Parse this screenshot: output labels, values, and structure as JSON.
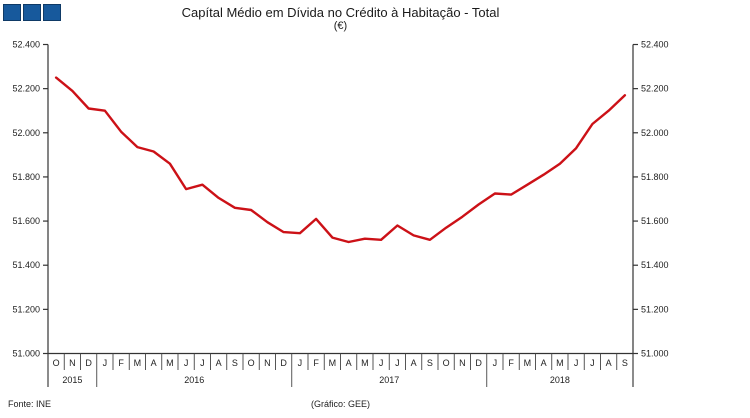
{
  "header": {
    "title": "Capítal Médio em Dívida no Crédito à Habitação - Total",
    "subtitle": "(€)"
  },
  "footer": {
    "source": "Fonte: INE",
    "credit": "(Gráfico: GEE)"
  },
  "colors": {
    "line": "#cc1117",
    "axis": "#333333",
    "separator": "#444444",
    "logo_blue": "#17599c",
    "logo_border": "#0f3a66"
  },
  "chart_data": {
    "type": "line",
    "title": "Capítal Médio em Dívida no Crédito à Habitação - Total",
    "subtitle": "(€)",
    "legend": "none",
    "grid": "off",
    "axes": "dual y-axis (left and right, same scale), x-axis months grouped by year",
    "ylim": [
      51000,
      52400
    ],
    "yticks": [
      51000,
      51200,
      51400,
      51600,
      51800,
      52000,
      52200,
      52400
    ],
    "ytick_labels": [
      "51.000",
      "51.200",
      "51.400",
      "51.600",
      "51.800",
      "52.000",
      "52.200",
      "52.400"
    ],
    "x_months": [
      "O",
      "N",
      "D",
      "J",
      "F",
      "M",
      "A",
      "M",
      "J",
      "J",
      "A",
      "S",
      "O",
      "N",
      "D",
      "J",
      "F",
      "M",
      "A",
      "M",
      "J",
      "J",
      "A",
      "S",
      "O",
      "N",
      "D",
      "J",
      "F",
      "M",
      "A",
      "M",
      "J",
      "J",
      "A",
      "S"
    ],
    "year_groups": [
      {
        "label": "2015",
        "months": 3
      },
      {
        "label": "2016",
        "months": 12
      },
      {
        "label": "2017",
        "months": 12
      },
      {
        "label": "2018",
        "months": 9
      }
    ],
    "series": [
      {
        "name": "Capítal Médio em Dívida no Crédito à Habitação - Total (€)",
        "color": "#cc1117",
        "values": [
          52250,
          52190,
          52110,
          52100,
          52005,
          51935,
          51915,
          51860,
          51745,
          51765,
          51705,
          51660,
          51650,
          51595,
          51550,
          51545,
          51610,
          51525,
          51505,
          51520,
          51515,
          51580,
          51535,
          51515,
          51570,
          51620,
          51675,
          51725,
          51720,
          51765,
          51810,
          51860,
          51930,
          52040,
          52100,
          52170
        ]
      }
    ]
  }
}
